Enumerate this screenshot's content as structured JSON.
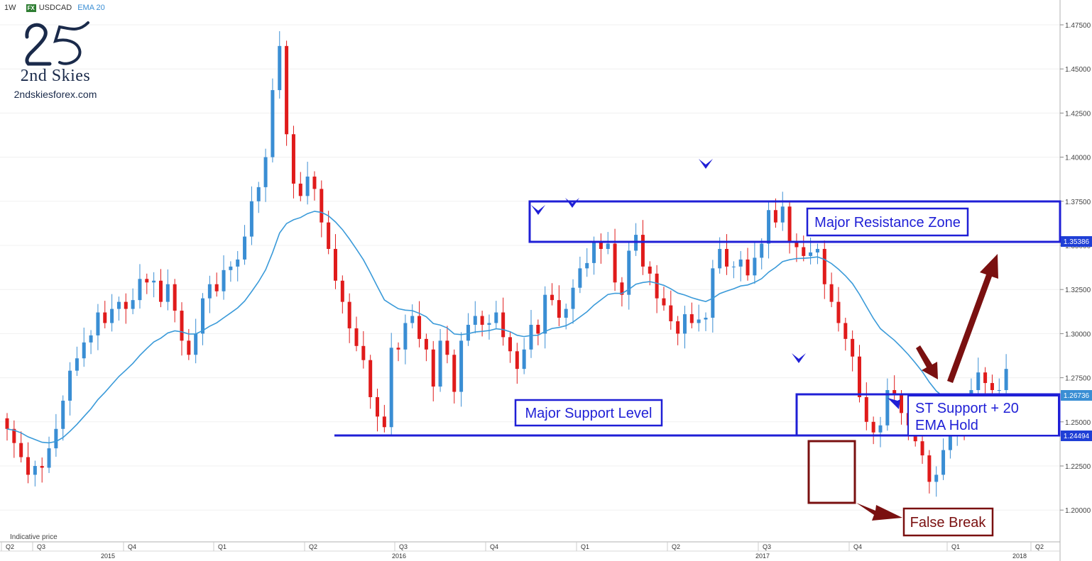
{
  "header": {
    "timeframe": "1W",
    "fx_badge": "FX",
    "symbol": "USDCAD",
    "indicator": "EMA 20"
  },
  "brand": {
    "name": "2nd Skies",
    "site": "2ndskiesforex.com"
  },
  "footer": {
    "indicative": "Indicative price"
  },
  "price_badges": [
    {
      "label": "1.35386",
      "color": "#1f3fd6"
    },
    {
      "label": "1.26736",
      "color": "#3a8ed4"
    },
    {
      "label": "1.24494",
      "color": "#1f3fd6"
    }
  ],
  "annotations": {
    "resistance": "Major Resistance Zone",
    "support": "Major Support Level",
    "st_support_line1": "ST Support + 20",
    "st_support_line2": "EMA Hold",
    "false_break": "False Break"
  },
  "colors": {
    "up": "#3a8ed4",
    "down": "#e01b1b",
    "ema": "#3a9ad9",
    "zone": "#1f1fd6",
    "annotation": "#7a1010"
  },
  "chart_data": {
    "type": "candlestick",
    "series": [
      {
        "name": "USDCAD",
        "timeframe": "1W"
      },
      {
        "name": "EMA 20"
      }
    ],
    "y_ticks": [
      "1.47500",
      "1.45000",
      "1.42500",
      "1.40000",
      "1.37500",
      "1.35000",
      "1.32500",
      "1.30000",
      "1.27500",
      "1.25000",
      "1.22500",
      "1.20000"
    ],
    "ylim": [
      1.19,
      1.48
    ],
    "x_quarter_labels": [
      "Q2",
      "Q3",
      "Q4",
      "Q1",
      "Q2",
      "Q3",
      "Q4",
      "Q1",
      "Q2",
      "Q3",
      "Q4",
      "Q1",
      "Q2"
    ],
    "x_year_labels": [
      "2015",
      "2016",
      "2017",
      "2018"
    ],
    "close": [
      1.246,
      1.238,
      1.23,
      1.22,
      1.225,
      1.224,
      1.235,
      1.246,
      1.262,
      1.279,
      1.286,
      1.295,
      1.299,
      1.312,
      1.306,
      1.314,
      1.318,
      1.314,
      1.319,
      1.331,
      1.329,
      1.33,
      1.318,
      1.328,
      1.313,
      1.296,
      1.288,
      1.3,
      1.32,
      1.328,
      1.324,
      1.336,
      1.338,
      1.342,
      1.355,
      1.375,
      1.383,
      1.4,
      1.438,
      1.463,
      1.413,
      1.385,
      1.378,
      1.389,
      1.382,
      1.363,
      1.348,
      1.33,
      1.318,
      1.303,
      1.293,
      1.285,
      1.264,
      1.253,
      1.247,
      1.292,
      1.291,
      1.306,
      1.31,
      1.297,
      1.291,
      1.27,
      1.296,
      1.288,
      1.267,
      1.296,
      1.305,
      1.31,
      1.305,
      1.306,
      1.312,
      1.298,
      1.29,
      1.28,
      1.291,
      1.305,
      1.3,
      1.322,
      1.319,
      1.309,
      1.314,
      1.326,
      1.337,
      1.34,
      1.352,
      1.348,
      1.351,
      1.329,
      1.322,
      1.347,
      1.356,
      1.338,
      1.334,
      1.32,
      1.316,
      1.307,
      1.3,
      1.311,
      1.306,
      1.308,
      1.309,
      1.337,
      1.348,
      1.338,
      1.338,
      1.342,
      1.333,
      1.343,
      1.351,
      1.37,
      1.363,
      1.372,
      1.352,
      1.349,
      1.344,
      1.346,
      1.348,
      1.328,
      1.318,
      1.306,
      1.297,
      1.287,
      1.264,
      1.25,
      1.244,
      1.248,
      1.268,
      1.265,
      1.255,
      1.248,
      1.239,
      1.231,
      1.216,
      1.22,
      1.234,
      1.243,
      1.251,
      1.248,
      1.268,
      1.278,
      1.272,
      1.268,
      1.268,
      1.28
    ]
  }
}
